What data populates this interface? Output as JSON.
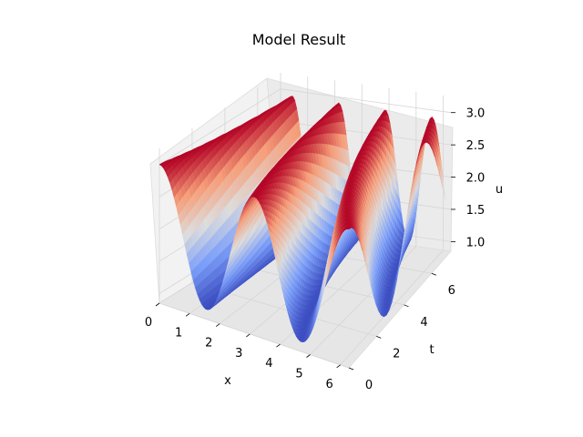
{
  "chart_data": {
    "type": "surface",
    "title": "Model Result",
    "xlabel": "x",
    "ylabel": "t",
    "zlabel": "u",
    "xlim": [
      0,
      6.283
    ],
    "ylim": [
      0,
      7.4
    ],
    "zlim": [
      0.85,
      3.25
    ],
    "xticks": [
      "0",
      "1",
      "2",
      "3",
      "4",
      "5",
      "6"
    ],
    "yticks": [
      "0",
      "2",
      "4",
      "6"
    ],
    "zticks": [
      "1.0",
      "1.5",
      "2.0",
      "2.5",
      "3.0"
    ],
    "colormap": "coolwarm",
    "grid": true,
    "surface": {
      "description": "wave-like traveling surface u(x,t)",
      "x_samples": [
        0.0,
        0.5,
        1.0,
        1.5,
        2.0,
        2.5,
        3.0,
        3.5,
        4.0,
        4.5,
        5.0,
        5.5,
        6.0
      ],
      "u_at_t0": [
        3.0,
        2.55,
        1.45,
        1.0,
        1.45,
        2.55,
        3.0,
        2.55,
        1.45,
        1.0,
        1.45,
        2.55,
        3.0
      ],
      "u_min": 1.0,
      "u_max": 3.0
    }
  }
}
